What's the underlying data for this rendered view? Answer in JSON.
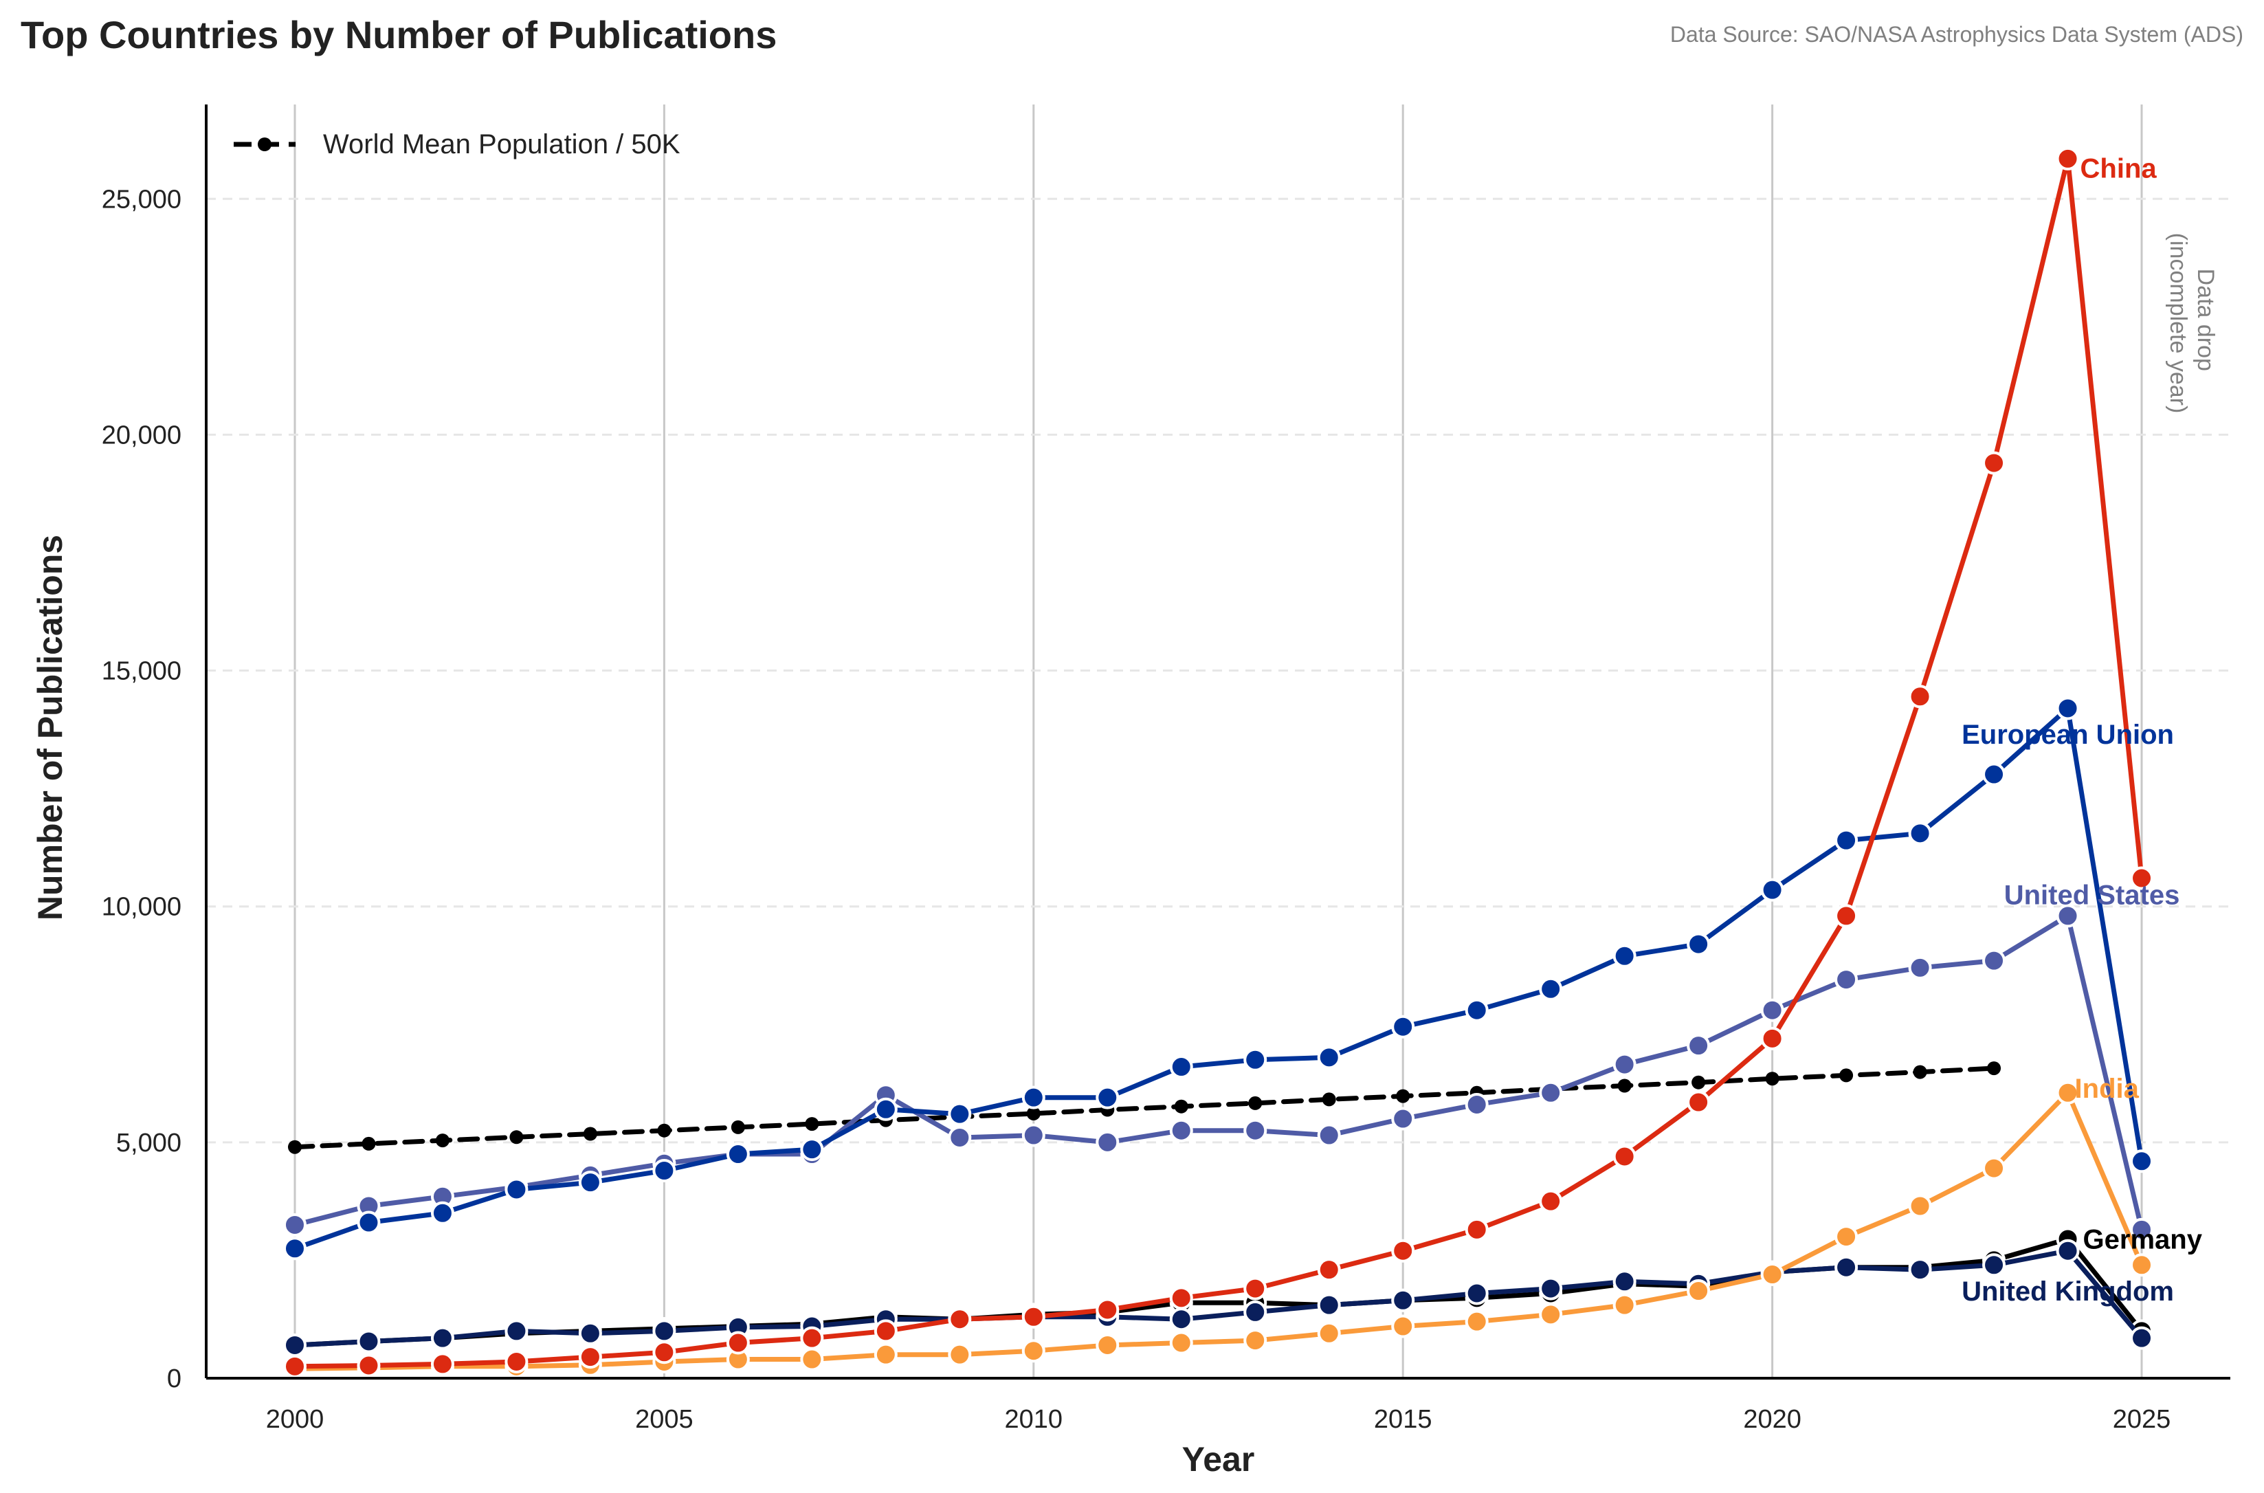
{
  "header": {
    "title": "Top Countries by Number of Publications",
    "source": "Data Source: SAO/NASA Astrophysics Data System (ADS)"
  },
  "annotation": {
    "line1": "Data drop",
    "line2": "(incomplete year)"
  },
  "chart_data": {
    "type": "line",
    "xlabel": "Year",
    "ylabel": "Number of Publications",
    "xlim": [
      1998.8,
      2026.2
    ],
    "ylim": [
      0,
      27000
    ],
    "xticks": [
      2000,
      2005,
      2010,
      2015,
      2020,
      2025
    ],
    "xtick_labels": [
      "2000",
      "2005",
      "2010",
      "2015",
      "2020",
      "2025"
    ],
    "yticks": [
      0,
      5000,
      10000,
      15000,
      20000,
      25000
    ],
    "ytick_labels": [
      "0",
      "5,000",
      "10,000",
      "15,000",
      "20,000",
      "25,000"
    ],
    "grid": "vertical solid at x ticks, horizontal dashed at y ticks",
    "legend": {
      "placement": "top-left",
      "entries": [
        "World Mean Population / 50K"
      ]
    },
    "series": [
      {
        "name": "World Mean Population / 50K",
        "style": "dashed",
        "color": "#000000",
        "x": [
          2000,
          2001,
          2002,
          2003,
          2004,
          2005,
          2006,
          2007,
          2008,
          2009,
          2010,
          2011,
          2012,
          2013,
          2014,
          2015,
          2016,
          2017,
          2018,
          2019,
          2020,
          2021,
          2022,
          2023
        ],
        "values": [
          4900,
          4970,
          5040,
          5110,
          5180,
          5250,
          5320,
          5390,
          5470,
          5540,
          5610,
          5690,
          5760,
          5830,
          5910,
          5980,
          6050,
          6130,
          6200,
          6270,
          6350,
          6420,
          6490,
          6570
        ]
      },
      {
        "name": "United States",
        "color": "#4f5ba6",
        "label": {
          "text": "United States",
          "year": 2024,
          "value": 10250,
          "anchor": "middle",
          "dx": 35
        },
        "x": [
          2000,
          2001,
          2002,
          2003,
          2004,
          2005,
          2006,
          2007,
          2008,
          2009,
          2010,
          2011,
          2012,
          2013,
          2014,
          2015,
          2016,
          2017,
          2018,
          2019,
          2020,
          2021,
          2022,
          2023,
          2024,
          2025
        ],
        "values": [
          3250,
          3650,
          3850,
          4050,
          4300,
          4550,
          4750,
          4750,
          6000,
          5100,
          5150,
          5000,
          5250,
          5250,
          5150,
          5500,
          5800,
          6050,
          6650,
          7050,
          7800,
          8450,
          8700,
          8850,
          9800,
          3150
        ]
      },
      {
        "name": "European Union",
        "color": "#00339a",
        "label": {
          "text": "European Union",
          "year": 2024,
          "value": 13650,
          "anchor": "middle",
          "dx": 0
        },
        "x": [
          2000,
          2001,
          2002,
          2003,
          2004,
          2005,
          2006,
          2007,
          2008,
          2009,
          2010,
          2011,
          2012,
          2013,
          2014,
          2015,
          2016,
          2017,
          2018,
          2019,
          2020,
          2021,
          2022,
          2023,
          2024,
          2025
        ],
        "values": [
          2750,
          3300,
          3500,
          4000,
          4150,
          4400,
          4750,
          4850,
          5700,
          5600,
          5950,
          5950,
          6600,
          6750,
          6800,
          7450,
          7800,
          8250,
          8950,
          9200,
          10350,
          11400,
          11550,
          12800,
          14200,
          4600
        ]
      },
      {
        "name": "Germany",
        "color": "#000000",
        "label": {
          "text": "Germany",
          "year": 2024,
          "value": 2950,
          "anchor": "start",
          "dx": 22
        },
        "x": [
          2000,
          2001,
          2002,
          2003,
          2004,
          2005,
          2006,
          2007,
          2008,
          2009,
          2010,
          2011,
          2012,
          2013,
          2014,
          2015,
          2016,
          2017,
          2018,
          2019,
          2020,
          2021,
          2022,
          2023,
          2024,
          2025
        ],
        "values": [
          700,
          780,
          850,
          950,
          1000,
          1050,
          1100,
          1150,
          1300,
          1250,
          1350,
          1400,
          1600,
          1600,
          1550,
          1650,
          1700,
          1800,
          2000,
          1950,
          2250,
          2350,
          2350,
          2500,
          2950,
          1000
        ]
      },
      {
        "name": "United Kingdom",
        "color": "#0a1f5c",
        "label": {
          "text": "United Kingdom",
          "year": 2024,
          "value": 1850,
          "anchor": "middle",
          "dx": 0
        },
        "x": [
          2000,
          2001,
          2002,
          2003,
          2004,
          2005,
          2006,
          2007,
          2008,
          2009,
          2010,
          2011,
          2012,
          2013,
          2014,
          2015,
          2016,
          2017,
          2018,
          2019,
          2020,
          2021,
          2022,
          2023,
          2024,
          2025
        ],
        "values": [
          700,
          780,
          850,
          1000,
          950,
          1000,
          1080,
          1100,
          1250,
          1250,
          1300,
          1300,
          1250,
          1400,
          1550,
          1650,
          1800,
          1900,
          2050,
          2000,
          2250,
          2350,
          2300,
          2400,
          2700,
          850
        ]
      },
      {
        "name": "India",
        "color": "#fa9a3a",
        "label": {
          "text": "India",
          "year": 2024,
          "value": 6150,
          "anchor": "start",
          "dx": 10
        },
        "x": [
          2000,
          2001,
          2002,
          2003,
          2004,
          2005,
          2006,
          2007,
          2008,
          2009,
          2010,
          2011,
          2012,
          2013,
          2014,
          2015,
          2016,
          2017,
          2018,
          2019,
          2020,
          2021,
          2022,
          2023,
          2024,
          2025
        ],
        "values": [
          200,
          220,
          250,
          250,
          280,
          350,
          400,
          400,
          500,
          500,
          580,
          700,
          750,
          800,
          950,
          1100,
          1200,
          1350,
          1550,
          1850,
          2200,
          3000,
          3650,
          4450,
          6050,
          2400
        ]
      },
      {
        "name": "China",
        "color": "#dc2a11",
        "label": {
          "text": "China",
          "year": 2024,
          "value": 25650,
          "anchor": "start",
          "dx": 18
        },
        "x": [
          2000,
          2001,
          2002,
          2003,
          2004,
          2005,
          2006,
          2007,
          2008,
          2009,
          2010,
          2011,
          2012,
          2013,
          2014,
          2015,
          2016,
          2017,
          2018,
          2019,
          2020,
          2021,
          2022,
          2023,
          2024,
          2025
        ],
        "values": [
          250,
          270,
          300,
          350,
          450,
          550,
          750,
          850,
          1000,
          1250,
          1300,
          1450,
          1700,
          1900,
          2300,
          2700,
          3150,
          3750,
          4700,
          5850,
          7200,
          9800,
          14450,
          19400,
          25850,
          10600
        ]
      }
    ]
  }
}
